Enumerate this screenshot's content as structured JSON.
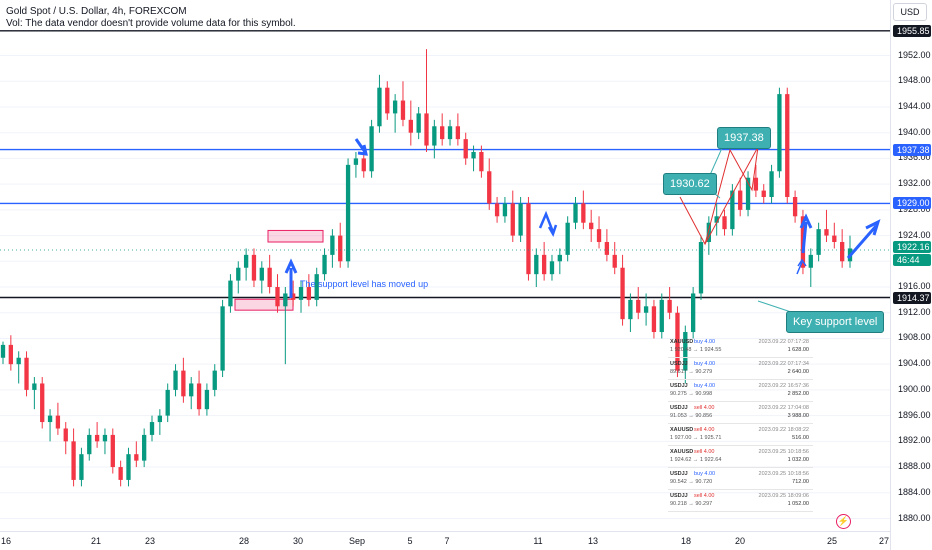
{
  "header": {
    "title": "Gold Spot / U.S. Dollar, 4h, FOREXCOM",
    "volume_note": "Vol: The data vendor doesn't provide volume data for this symbol."
  },
  "currency_button": "USD",
  "colors": {
    "up": "#089981",
    "down": "#f23645",
    "blue_line": "#2962ff",
    "teal_label": "#3fb0b1",
    "pink_box": "#e91e63"
  },
  "chart_data": {
    "type": "candlestick",
    "ylim": [
      1878,
      1958
    ],
    "y_ticks": [
      1880,
      1884,
      1888,
      1892,
      1896,
      1900,
      1904,
      1908,
      1912,
      1916,
      1920,
      1924,
      1928,
      1932,
      1936,
      1940,
      1944,
      1948,
      1952
    ],
    "x_ticks": [
      "16",
      "21",
      "23",
      "28",
      "30",
      "Sep",
      "5",
      "7",
      "11",
      "13",
      "18",
      "20",
      "25",
      "27"
    ],
    "price_tags": [
      {
        "label": "1955.85",
        "value": 1955.85,
        "color": "#131722"
      },
      {
        "label": "1937.38",
        "value": 1937.38,
        "color": "#2962ff"
      },
      {
        "label": "1929.00",
        "value": 1929.0,
        "color": "#2962ff"
      },
      {
        "label": "1922.16",
        "value": 1922.16,
        "color": "#089981"
      },
      {
        "label": "46:44",
        "value": 1920.9,
        "color": "#089981"
      },
      {
        "label": "1914.37",
        "value": 1914.37,
        "color": "#131722"
      }
    ],
    "levels": [
      {
        "value": 1955.85,
        "color": "#131722"
      },
      {
        "value": 1937.38,
        "color": "#2962ff"
      },
      {
        "value": 1929.0,
        "color": "#2962ff"
      },
      {
        "value": 1914.37,
        "color": "#131722"
      }
    ],
    "candles": [
      [
        1905,
        1907.5,
        1904,
        1907
      ],
      [
        1907,
        1908.5,
        1903,
        1904
      ],
      [
        1904,
        1906,
        1901,
        1905
      ],
      [
        1905,
        1906,
        1899,
        1900
      ],
      [
        1900,
        1902,
        1897,
        1901
      ],
      [
        1901,
        1902,
        1894,
        1895
      ],
      [
        1895,
        1897,
        1892,
        1896
      ],
      [
        1896,
        1898,
        1893,
        1894
      ],
      [
        1894,
        1895,
        1890,
        1892
      ],
      [
        1892,
        1894,
        1885,
        1886
      ],
      [
        1886,
        1891,
        1885,
        1890
      ],
      [
        1890,
        1894,
        1889,
        1893
      ],
      [
        1893,
        1895,
        1891,
        1892
      ],
      [
        1892,
        1894,
        1890,
        1893
      ],
      [
        1893,
        1894,
        1887,
        1888
      ],
      [
        1888,
        1889,
        1885,
        1886
      ],
      [
        1886,
        1891,
        1885,
        1890
      ],
      [
        1890,
        1892,
        1888,
        1889
      ],
      [
        1889,
        1894,
        1888,
        1893
      ],
      [
        1893,
        1896,
        1892,
        1895
      ],
      [
        1895,
        1897,
        1893,
        1896
      ],
      [
        1896,
        1901,
        1895,
        1900
      ],
      [
        1900,
        1904,
        1899,
        1903
      ],
      [
        1903,
        1905,
        1898,
        1899
      ],
      [
        1899,
        1902,
        1897,
        1901
      ],
      [
        1901,
        1903,
        1896,
        1897
      ],
      [
        1897,
        1901,
        1896,
        1900
      ],
      [
        1900,
        1904,
        1899,
        1903
      ],
      [
        1903,
        1914,
        1902,
        1913
      ],
      [
        1913,
        1918,
        1912,
        1917
      ],
      [
        1917,
        1920,
        1915,
        1919
      ],
      [
        1919,
        1922,
        1917,
        1921
      ],
      [
        1921,
        1922,
        1916,
        1917
      ],
      [
        1917,
        1920,
        1915,
        1919
      ],
      [
        1919,
        1921,
        1915,
        1916
      ],
      [
        1916,
        1918,
        1912,
        1913
      ],
      [
        1913,
        1916,
        1904,
        1915
      ],
      [
        1915,
        1917,
        1913,
        1914
      ],
      [
        1914,
        1917,
        1912,
        1916
      ],
      [
        1916,
        1918,
        1913,
        1914
      ],
      [
        1914,
        1919,
        1913,
        1918
      ],
      [
        1918,
        1922,
        1917,
        1921
      ],
      [
        1921,
        1925,
        1919,
        1924
      ],
      [
        1924,
        1926,
        1919,
        1920
      ],
      [
        1920,
        1936,
        1919,
        1935
      ],
      [
        1935,
        1937,
        1933,
        1936
      ],
      [
        1936,
        1938,
        1933,
        1934
      ],
      [
        1934,
        1942,
        1933,
        1941
      ],
      [
        1941,
        1949,
        1940,
        1947
      ],
      [
        1947,
        1948,
        1942,
        1943
      ],
      [
        1943,
        1946,
        1940,
        1945
      ],
      [
        1945,
        1948,
        1941,
        1942
      ],
      [
        1942,
        1945,
        1938,
        1940
      ],
      [
        1940,
        1944,
        1939,
        1943
      ],
      [
        1943,
        1953,
        1937,
        1938
      ],
      [
        1938,
        1942,
        1936,
        1941
      ],
      [
        1941,
        1943,
        1938,
        1939
      ],
      [
        1939,
        1942,
        1938,
        1941
      ],
      [
        1941,
        1943,
        1938,
        1939
      ],
      [
        1939,
        1940,
        1935,
        1936
      ],
      [
        1936,
        1938,
        1934,
        1937
      ],
      [
        1937,
        1938,
        1933,
        1934
      ],
      [
        1934,
        1936,
        1928,
        1929
      ],
      [
        1929,
        1930,
        1926,
        1927
      ],
      [
        1927,
        1930,
        1926,
        1929
      ],
      [
        1929,
        1931,
        1923,
        1924
      ],
      [
        1924,
        1930,
        1923,
        1929
      ],
      [
        1929,
        1930,
        1917,
        1918
      ],
      [
        1918,
        1922,
        1916,
        1921
      ],
      [
        1921,
        1923,
        1917,
        1918
      ],
      [
        1918,
        1921,
        1917,
        1920
      ],
      [
        1920,
        1922,
        1918,
        1921
      ],
      [
        1921,
        1927,
        1920,
        1926
      ],
      [
        1926,
        1930,
        1925,
        1929
      ],
      [
        1929,
        1931,
        1925,
        1926
      ],
      [
        1926,
        1928,
        1923,
        1925
      ],
      [
        1925,
        1927,
        1922,
        1923
      ],
      [
        1923,
        1925,
        1920,
        1921
      ],
      [
        1921,
        1923,
        1918,
        1919
      ],
      [
        1919,
        1921,
        1910,
        1911
      ],
      [
        1911,
        1915,
        1909,
        1914
      ],
      [
        1914,
        1916,
        1911,
        1912
      ],
      [
        1912,
        1915,
        1910,
        1913
      ],
      [
        1913,
        1914,
        1908,
        1909
      ],
      [
        1909,
        1915,
        1908,
        1914
      ],
      [
        1914,
        1916,
        1911,
        1912
      ],
      [
        1912,
        1913,
        1902,
        1903
      ],
      [
        1903,
        1910,
        1901,
        1909
      ],
      [
        1909,
        1916,
        1908,
        1915
      ],
      [
        1915,
        1924,
        1914,
        1923
      ],
      [
        1923,
        1927,
        1921,
        1926
      ],
      [
        1926,
        1929,
        1924,
        1927
      ],
      [
        1927,
        1928,
        1924,
        1925
      ],
      [
        1925,
        1932,
        1924,
        1931
      ],
      [
        1931,
        1933,
        1927,
        1928
      ],
      [
        1928,
        1934,
        1927,
        1933
      ],
      [
        1933,
        1935,
        1930,
        1931
      ],
      [
        1931,
        1932,
        1929,
        1930
      ],
      [
        1930,
        1935,
        1929,
        1934
      ],
      [
        1934,
        1947,
        1933,
        1946
      ],
      [
        1946,
        1947,
        1929,
        1930
      ],
      [
        1930,
        1931,
        1926,
        1927
      ],
      [
        1927,
        1928,
        1918,
        1919
      ],
      [
        1919,
        1922,
        1916,
        1921
      ],
      [
        1921,
        1926,
        1920,
        1925
      ],
      [
        1925,
        1928,
        1923,
        1924
      ],
      [
        1924,
        1926,
        1922,
        1923
      ],
      [
        1923,
        1925,
        1919,
        1920
      ],
      [
        1920,
        1924,
        1919,
        1922
      ]
    ],
    "candle_x_start": 3,
    "candle_x_end": 850,
    "rectangles": [
      {
        "t1": 1924.8,
        "t2": 1923.0
      },
      {
        "t1": 1914.1,
        "t2": 1912.4
      }
    ]
  },
  "annotations": {
    "label_1930": "1930.62",
    "label_1937": "1937.38",
    "key_support": "Key support level",
    "support_note": "The support level has moved up"
  },
  "trades": [
    {
      "symbol": "XAUUSD",
      "side": "buy 4.00",
      "prices": "1 920.48 → 1 924.55",
      "time": "2023.09.22 07:17:28",
      "amount": "1 628.00"
    },
    {
      "symbol": "USDJJ",
      "side": "buy 4.00",
      "prices": "89.617 → 90.279",
      "time": "2023.09.22 07:17:34",
      "amount": "2 640.00"
    },
    {
      "symbol": "USDJJ",
      "side": "buy 4.00",
      "prices": "90.275 → 90.998",
      "time": "2023.09.22 16:57:36",
      "amount": "2 852.00"
    },
    {
      "symbol": "USDJJ",
      "side": "sell 4.00",
      "prices": "91.053 → 90.856",
      "time": "2023.09.22 17:04:08",
      "amount": "3 988.00"
    },
    {
      "symbol": "XAUUSD",
      "side": "sell 4.00",
      "prices": "1 927.00 → 1 925.71",
      "time": "2023.09.22 18:08:22",
      "amount": "516.00"
    },
    {
      "symbol": "XAUUSD",
      "side": "sell 4.00",
      "prices": "1 924.62 → 1 922.64",
      "time": "2023.09.25 10:18:56",
      "amount": "1 032.00"
    },
    {
      "symbol": "USDJJ",
      "side": "buy 4.00",
      "prices": "90.542 → 90.720",
      "time": "2023.09.25 10:18:56",
      "amount": "712.00"
    },
    {
      "symbol": "USDJJ",
      "side": "sell 4.00",
      "prices": "90.218 → 90.297",
      "time": "2023.09.25 18:09:06",
      "amount": "1 052.00"
    }
  ]
}
